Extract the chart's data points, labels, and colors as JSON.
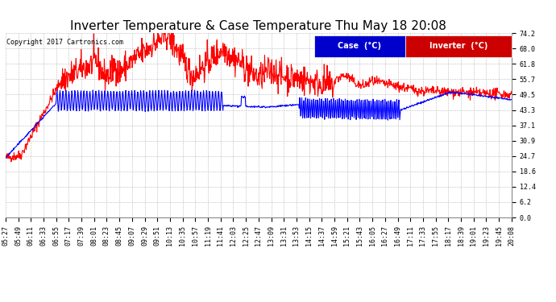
{
  "title": "Inverter Temperature & Case Temperature Thu May 18 20:08",
  "copyright": "Copyright 2017 Cartronics.com",
  "background_color": "#ffffff",
  "plot_bg_color": "#ffffff",
  "grid_color": "#bbbbbb",
  "ylim": [
    0.0,
    74.2
  ],
  "yticks": [
    0.0,
    6.2,
    12.4,
    18.6,
    24.7,
    30.9,
    37.1,
    43.3,
    49.5,
    55.7,
    61.8,
    68.0,
    74.2
  ],
  "xtick_labels": [
    "05:27",
    "05:49",
    "06:11",
    "06:33",
    "06:55",
    "07:17",
    "07:39",
    "08:01",
    "08:23",
    "08:45",
    "09:07",
    "09:29",
    "09:51",
    "10:13",
    "10:35",
    "10:57",
    "11:19",
    "11:41",
    "12:03",
    "12:25",
    "12:47",
    "13:09",
    "13:31",
    "13:53",
    "14:15",
    "14:37",
    "14:59",
    "15:21",
    "15:43",
    "16:05",
    "16:27",
    "16:49",
    "17:11",
    "17:33",
    "17:55",
    "18:17",
    "18:39",
    "19:01",
    "19:23",
    "19:45",
    "20:08"
  ],
  "legend_case_color": "#0000cc",
  "legend_inverter_color": "#cc0000",
  "case_color": "#0000ff",
  "inverter_color": "#ff0000",
  "line_width": 0.8,
  "title_fontsize": 11,
  "tick_fontsize": 6,
  "legend_fontsize": 7,
  "copyright_fontsize": 6
}
